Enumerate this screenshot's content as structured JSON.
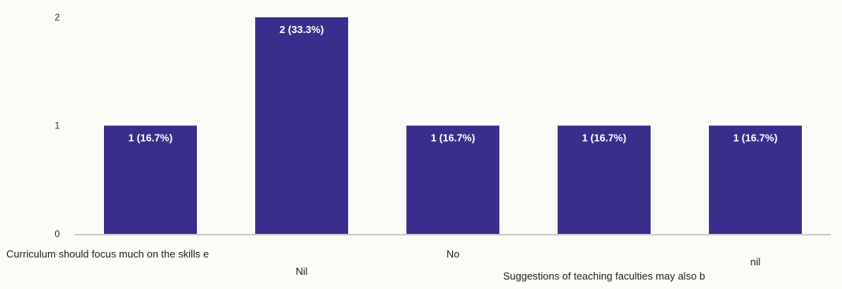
{
  "chart_data": {
    "type": "bar",
    "categories": [
      "Curriculum should focus much on the skills e",
      "Nil",
      "No",
      "Suggestions of teaching faculties may also b",
      "nil"
    ],
    "values": [
      1,
      2,
      1,
      1,
      1
    ],
    "data_labels": [
      "1 (16.7%)",
      "2 (33.3%)",
      "1 (16.7%)",
      "1 (16.7%)",
      "1 (16.7%)"
    ],
    "yticks": [
      "0",
      "1",
      "2"
    ],
    "ylim": [
      0,
      2
    ],
    "title": "",
    "xlabel": "",
    "ylabel": "",
    "grid": false,
    "legend": "none",
    "bar_color": "#3a2e8c",
    "axis_color": "#bdbdbd"
  }
}
